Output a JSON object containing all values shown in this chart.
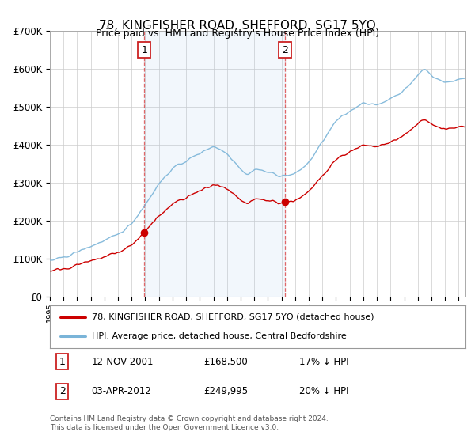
{
  "title": "78, KINGFISHER ROAD, SHEFFORD, SG17 5YQ",
  "subtitle": "Price paid vs. HM Land Registry's House Price Index (HPI)",
  "legend_line1": "78, KINGFISHER ROAD, SHEFFORD, SG17 5YQ (detached house)",
  "legend_line2": "HPI: Average price, detached house, Central Bedfordshire",
  "transaction1_date": "12-NOV-2001",
  "transaction1_price": "£168,500",
  "transaction1_hpi": "17% ↓ HPI",
  "transaction2_date": "03-APR-2012",
  "transaction2_price": "£249,995",
  "transaction2_hpi": "20% ↓ HPI",
  "footer": "Contains HM Land Registry data © Crown copyright and database right 2024.\nThis data is licensed under the Open Government Licence v3.0.",
  "hpi_color": "#7ab4d8",
  "price_color": "#cc0000",
  "marker1_x": 2001.92,
  "marker1_y": 168500,
  "marker2_x": 2012.25,
  "marker2_y": 249995,
  "vline1_x": 2001.92,
  "vline2_x": 2012.25,
  "ylim": [
    0,
    700000
  ],
  "xlim_start": 1995.0,
  "xlim_end": 2025.5,
  "background_color": "#ffffff",
  "grid_color": "#cccccc",
  "shade_color": "#ddeeff"
}
